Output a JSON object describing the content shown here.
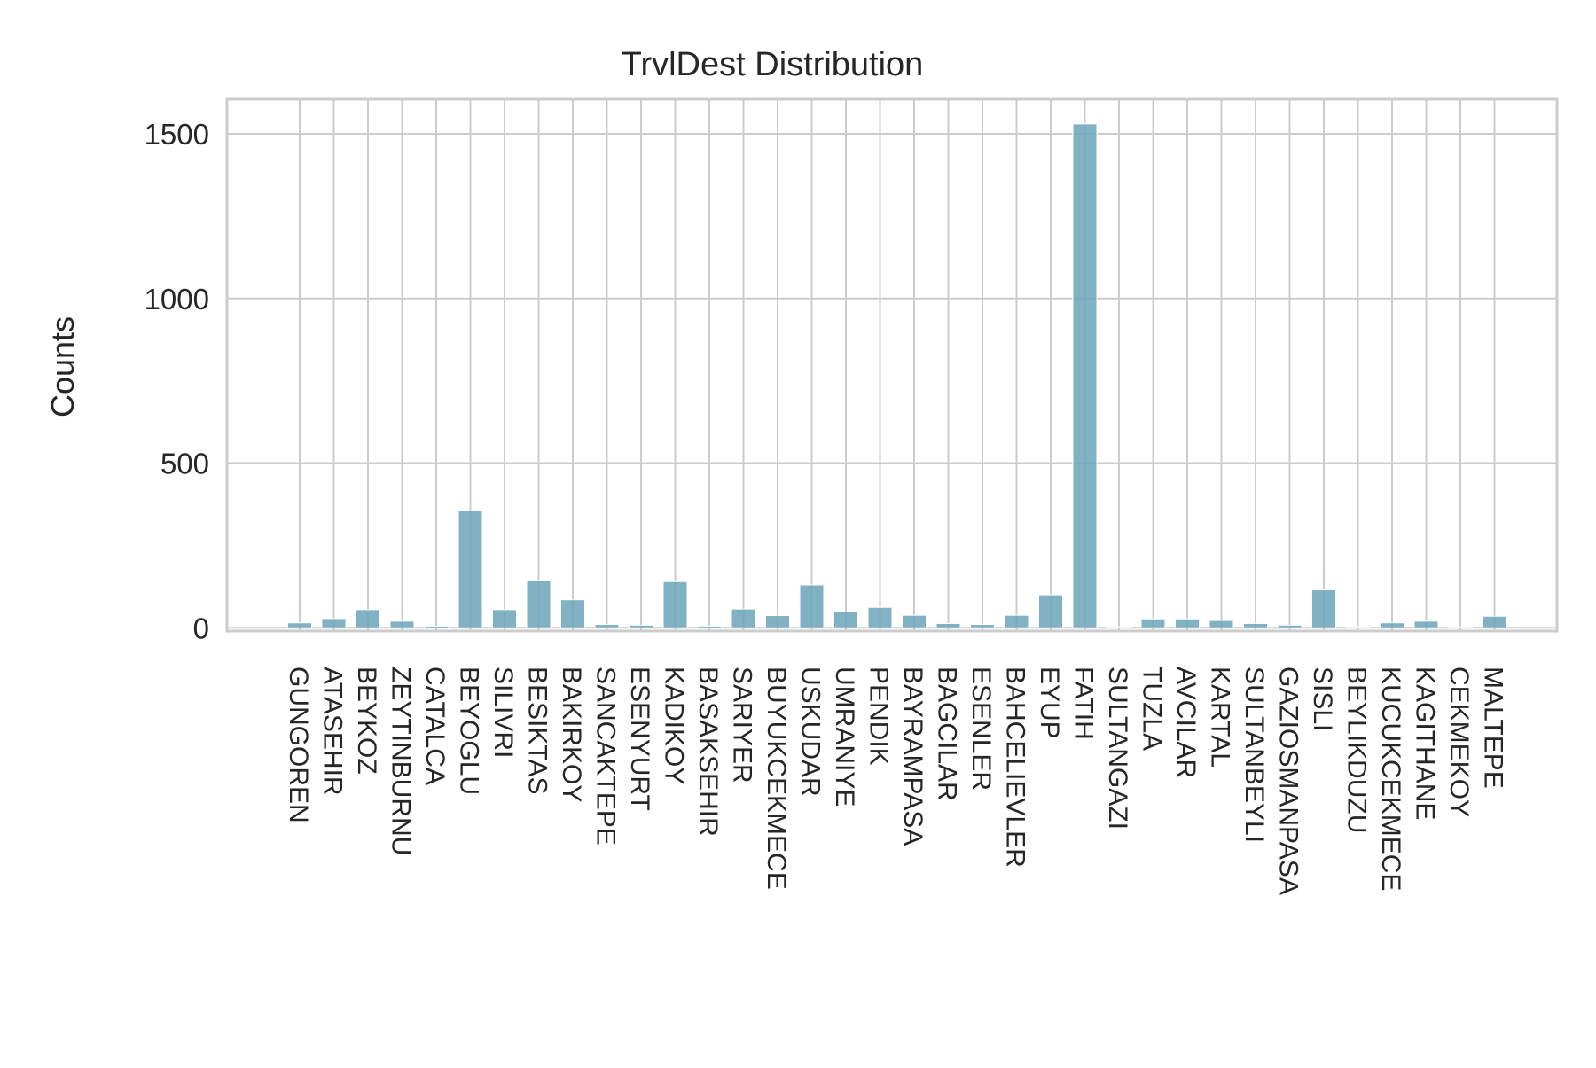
{
  "chart_data": {
    "type": "bar",
    "title": "TrvlDest Distribution",
    "xlabel": "",
    "ylabel": "Counts",
    "ylim": [
      -10,
      1605
    ],
    "yticks": [
      0,
      500,
      1000,
      1500
    ],
    "grid": true,
    "categories": [
      "GUNGOREN",
      "ATASEHIR",
      "BEYKOZ",
      "ZEYTINBURNU",
      "CATALCA",
      "BEYOGLU",
      "SILIVRI",
      "BESIKTAS",
      "BAKIRKOY",
      "SANCAKTEPE",
      "ESENYURT",
      "KADIKOY",
      "BASAKSEHIR",
      "SARIYER",
      "BUYUKCEKMECE",
      "USKUDAR",
      "UMRANIYE",
      "PENDIK",
      "BAYRAMPASA",
      "BAGCILAR",
      "ESENLER",
      "BAHCELIEVLER",
      "EYUP",
      "FATIH",
      "SULTANGAZI",
      "TUZLA",
      "AVCILAR",
      "KARTAL",
      "SULTANBEYLI",
      "GAZIOSMANPASA",
      "SISLI",
      "BEYLIKDUZU",
      "KUCUKCEKMECE",
      "KAGITHANE",
      "CEKMEKOY",
      "MALTEPE"
    ],
    "values": [
      15,
      28,
      55,
      20,
      5,
      355,
      55,
      145,
      85,
      10,
      8,
      140,
      5,
      57,
      37,
      130,
      48,
      62,
      38,
      13,
      10,
      38,
      100,
      1530,
      3,
      27,
      27,
      22,
      13,
      8,
      115,
      3,
      15,
      20,
      3,
      35
    ],
    "colors": {
      "bar": "#6aa5b8",
      "bar_edge": "#ffffff",
      "grid": "#cccccc",
      "spine": "#cccccc"
    }
  }
}
